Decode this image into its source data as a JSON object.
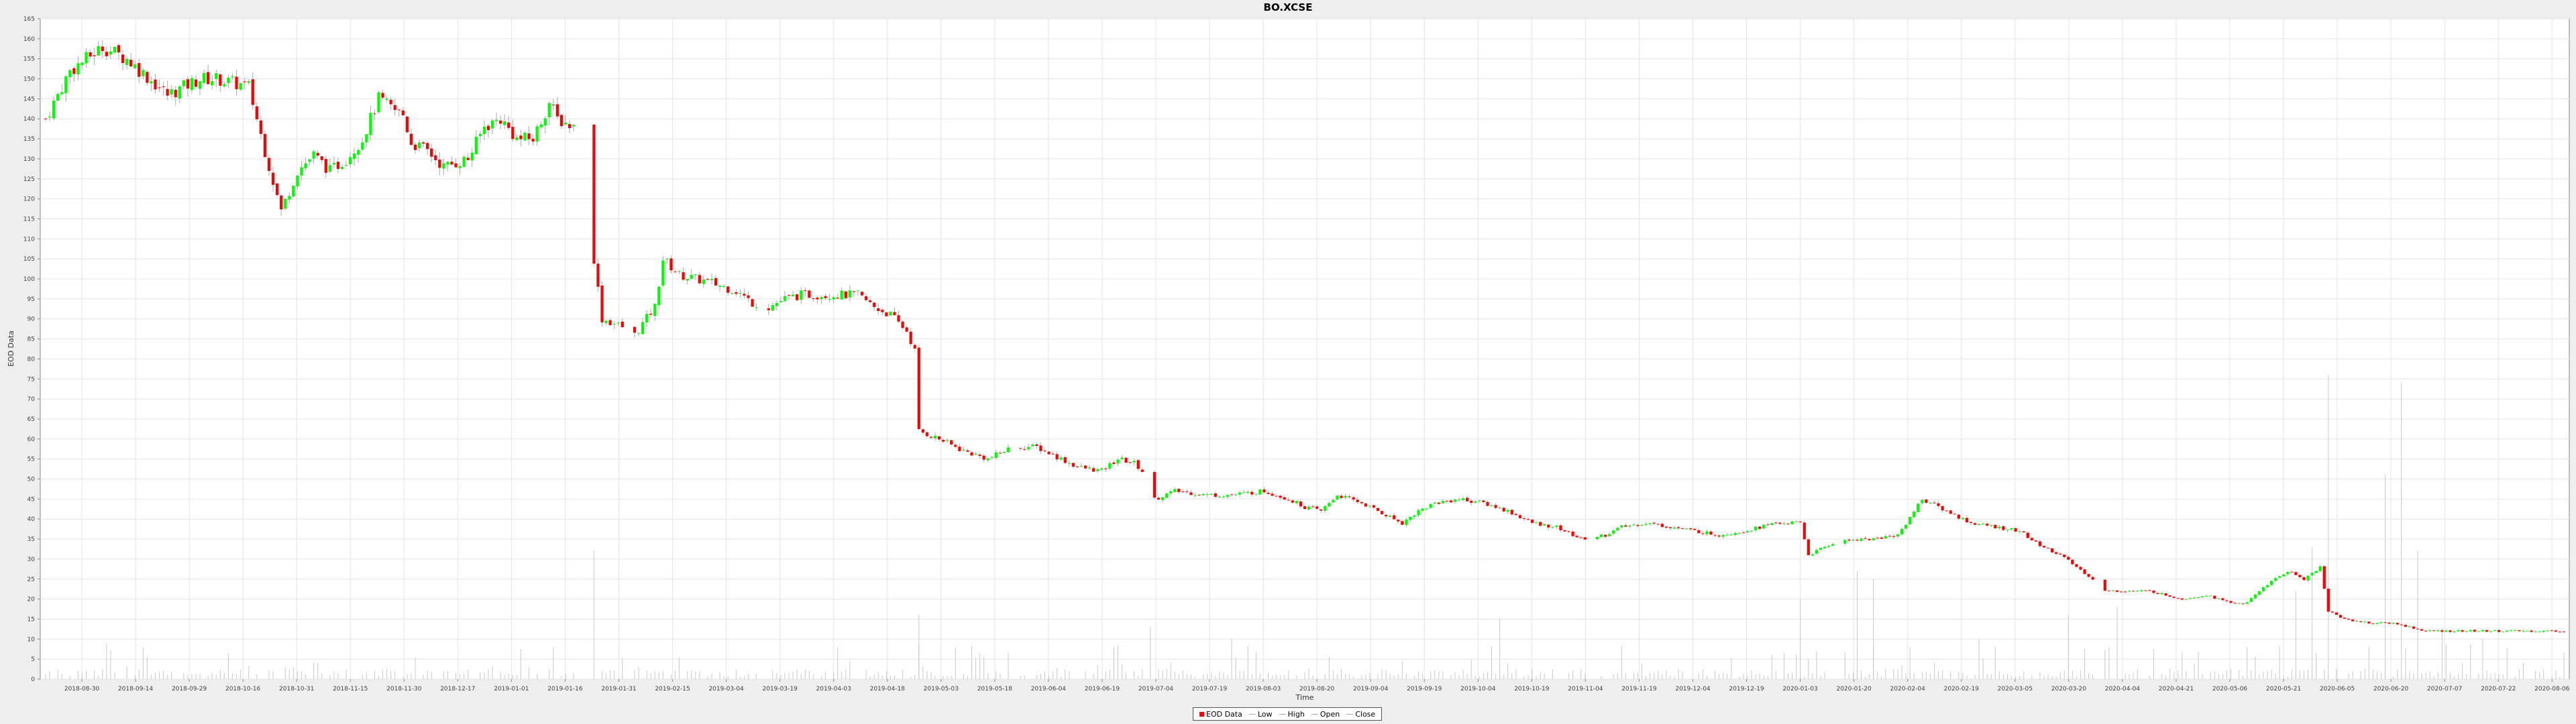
{
  "chart_data": {
    "type": "candlestick",
    "title": "BO.XCSE",
    "xlabel": "Time",
    "ylabel": "EOD Data",
    "ylim": [
      0,
      165
    ],
    "y_ticks": [
      0,
      5,
      10,
      15,
      20,
      25,
      30,
      35,
      40,
      45,
      50,
      55,
      60,
      65,
      70,
      75,
      80,
      85,
      90,
      95,
      100,
      105,
      110,
      115,
      120,
      125,
      130,
      135,
      140,
      145,
      150,
      155,
      160,
      165
    ],
    "x_tick_labels": [
      "2018-08-30",
      "2018-09-14",
      "2018-09-29",
      "2018-10-16",
      "2018-10-31",
      "2018-11-15",
      "2018-11-30",
      "2018-12-17",
      "2019-01-01",
      "2019-01-16",
      "2019-01-31",
      "2019-02-15",
      "2019-03-04",
      "2019-03-19",
      "2019-04-03",
      "2019-04-18",
      "2019-05-03",
      "2019-05-18",
      "2019-06-04",
      "2019-06-19",
      "2019-07-04",
      "2019-07-19",
      "2019-08-03",
      "2019-08-20",
      "2019-09-04",
      "2019-09-19",
      "2019-10-04",
      "2019-10-19",
      "2019-11-04",
      "2019-11-19",
      "2019-12-04",
      "2019-12-19",
      "2020-01-03",
      "2020-01-20",
      "2020-02-04",
      "2020-02-19",
      "2020-03-05",
      "2020-03-20",
      "2020-04-04",
      "2020-04-21",
      "2020-05-06",
      "2020-05-21",
      "2020-06-05",
      "2020-06-20",
      "2020-07-07",
      "2020-07-22",
      "2020-08-06"
    ],
    "anchors": [
      [
        0,
        140
      ],
      [
        6,
        152
      ],
      [
        14,
        158
      ],
      [
        20,
        155
      ],
      [
        30,
        146
      ],
      [
        38,
        150
      ],
      [
        42,
        150
      ],
      [
        50,
        148
      ],
      [
        54,
        132
      ],
      [
        58,
        117
      ],
      [
        62,
        127
      ],
      [
        66,
        131
      ],
      [
        70,
        127
      ],
      [
        74,
        130
      ],
      [
        78,
        135
      ],
      [
        82,
        145
      ],
      [
        86,
        142
      ],
      [
        88,
        141
      ],
      [
        90,
        134
      ],
      [
        94,
        132
      ],
      [
        98,
        128
      ],
      [
        104,
        130
      ],
      [
        108,
        138
      ],
      [
        112,
        140
      ],
      [
        116,
        135
      ],
      [
        120,
        135
      ],
      [
        124,
        144
      ],
      [
        126,
        140
      ],
      [
        130,
        138
      ],
      [
        134,
        137
      ],
      [
        135,
        105
      ],
      [
        137,
        90
      ],
      [
        142,
        88
      ],
      [
        145,
        86
      ],
      [
        150,
        93
      ],
      [
        152,
        105
      ],
      [
        156,
        101
      ],
      [
        164,
        99
      ],
      [
        170,
        97
      ],
      [
        174,
        94
      ],
      [
        178,
        93
      ],
      [
        182,
        95
      ],
      [
        186,
        96
      ],
      [
        194,
        96
      ],
      [
        200,
        96
      ],
      [
        204,
        93
      ],
      [
        208,
        91
      ],
      [
        212,
        87
      ],
      [
        214,
        82
      ],
      [
        215,
        62
      ],
      [
        220,
        60
      ],
      [
        226,
        57
      ],
      [
        232,
        55
      ],
      [
        238,
        58
      ],
      [
        244,
        58
      ],
      [
        250,
        55
      ],
      [
        254,
        53
      ],
      [
        260,
        52
      ],
      [
        264,
        55
      ],
      [
        268,
        54
      ],
      [
        270,
        52
      ],
      [
        272,
        51
      ],
      [
        273,
        45
      ],
      [
        278,
        47
      ],
      [
        286,
        46
      ],
      [
        292,
        46
      ],
      [
        300,
        47
      ],
      [
        306,
        45
      ],
      [
        310,
        43
      ],
      [
        314,
        42
      ],
      [
        318,
        46
      ],
      [
        324,
        44
      ],
      [
        330,
        41
      ],
      [
        334,
        39
      ],
      [
        338,
        42
      ],
      [
        342,
        44
      ],
      [
        348,
        45
      ],
      [
        354,
        44
      ],
      [
        360,
        42
      ],
      [
        366,
        39
      ],
      [
        372,
        38
      ],
      [
        378,
        35
      ],
      [
        384,
        36
      ],
      [
        388,
        38
      ],
      [
        394,
        39
      ],
      [
        400,
        38
      ],
      [
        406,
        37
      ],
      [
        412,
        36
      ],
      [
        418,
        37
      ],
      [
        422,
        38
      ],
      [
        426,
        39
      ],
      [
        432,
        39
      ],
      [
        434,
        31
      ],
      [
        440,
        34
      ],
      [
        446,
        35
      ],
      [
        450,
        35
      ],
      [
        456,
        36
      ],
      [
        460,
        42
      ],
      [
        462,
        45
      ],
      [
        468,
        42
      ],
      [
        474,
        39
      ],
      [
        480,
        38
      ],
      [
        486,
        37
      ],
      [
        490,
        34
      ],
      [
        496,
        31
      ],
      [
        500,
        28
      ],
      [
        504,
        25
      ],
      [
        506,
        22
      ],
      [
        512,
        22
      ],
      [
        518,
        22
      ],
      [
        522,
        21
      ],
      [
        526,
        20
      ],
      [
        532,
        21
      ],
      [
        538,
        19
      ],
      [
        542,
        19
      ],
      [
        546,
        23
      ],
      [
        552,
        27
      ],
      [
        556,
        25
      ],
      [
        560,
        28
      ],
      [
        562,
        17
      ],
      [
        566,
        15
      ],
      [
        572,
        14
      ],
      [
        578,
        14
      ],
      [
        582,
        13
      ],
      [
        586,
        12
      ],
      [
        590,
        12
      ],
      [
        596,
        12
      ],
      [
        602,
        12
      ],
      [
        608,
        12
      ],
      [
        614,
        12
      ],
      [
        620,
        12
      ]
    ],
    "volume_spikes": [
      [
        135,
        32
      ],
      [
        215,
        16
      ],
      [
        272,
        13
      ],
      [
        292,
        10
      ],
      [
        358,
        15
      ],
      [
        432,
        20
      ],
      [
        446,
        27
      ],
      [
        450,
        25
      ],
      [
        476,
        10
      ],
      [
        498,
        16
      ],
      [
        510,
        18
      ],
      [
        554,
        22
      ],
      [
        558,
        33
      ],
      [
        562,
        76
      ],
      [
        576,
        51
      ],
      [
        580,
        74
      ],
      [
        584,
        32
      ],
      [
        590,
        12
      ],
      [
        600,
        10
      ]
    ],
    "series_colors": {
      "up": "#00ff00",
      "down": "#ff0000",
      "wick": "#aaaaaa",
      "volume": "#c8c8c8"
    }
  },
  "legend": {
    "items": [
      {
        "label": "EOD Data",
        "color": "#ff0000",
        "kind": "box"
      },
      {
        "label": "Low",
        "color": "#aaaaaa",
        "kind": "line"
      },
      {
        "label": "High",
        "color": "#aaaaaa",
        "kind": "line"
      },
      {
        "label": "Open",
        "color": "#aaaaaa",
        "kind": "line"
      },
      {
        "label": "Close",
        "color": "#aaaaaa",
        "kind": "line"
      }
    ]
  }
}
